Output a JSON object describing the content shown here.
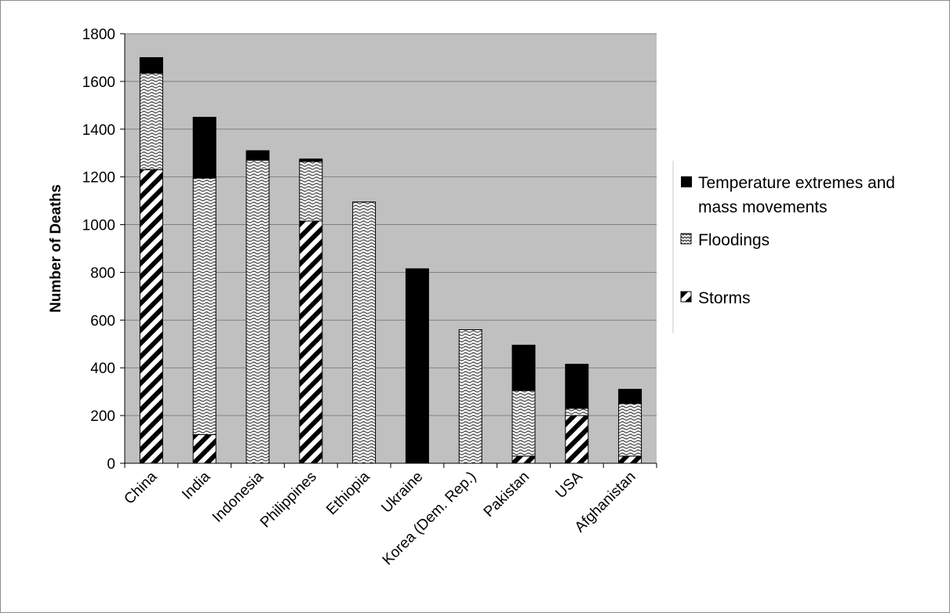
{
  "chart_data": {
    "type": "bar",
    "stacked": true,
    "title": "",
    "xlabel": "",
    "ylabel": "Number of Deaths",
    "ylim": [
      0,
      1800
    ],
    "yticks": [
      "0",
      "200",
      "400",
      "600",
      "800",
      "1000",
      "1200",
      "1400",
      "1600",
      "1800"
    ],
    "grid": true,
    "legend_position": "right",
    "categories": [
      "China",
      "India",
      "Indonesia",
      "Philippines",
      "Ethiopia",
      "Ukraine",
      "Korea (Dem. Rep.)",
      "Pakistan",
      "USA",
      "Afghanistan"
    ],
    "series": [
      {
        "name": "Storms",
        "pattern": "diagonal-stripes",
        "values": [
          1230,
          120,
          0,
          1015,
          0,
          0,
          0,
          30,
          200,
          30
        ]
      },
      {
        "name": "Floodings",
        "pattern": "wavy",
        "values": [
          405,
          1075,
          1270,
          250,
          1095,
          0,
          560,
          275,
          30,
          220
        ]
      },
      {
        "name": "Temperature extremes and mass movements",
        "pattern": "solid",
        "values": [
          65,
          255,
          40,
          10,
          0,
          815,
          0,
          190,
          185,
          60
        ]
      }
    ],
    "legend_lines": {
      "temperature": [
        "Temperature extremes and",
        "mass movements"
      ],
      "floodings": "Floodings",
      "storms": "Storms"
    },
    "colors": {
      "plot_background": "#c0c0c0",
      "bar_fill": "#000000",
      "pattern_background": "#ffffff",
      "gridline": "#808080"
    }
  }
}
